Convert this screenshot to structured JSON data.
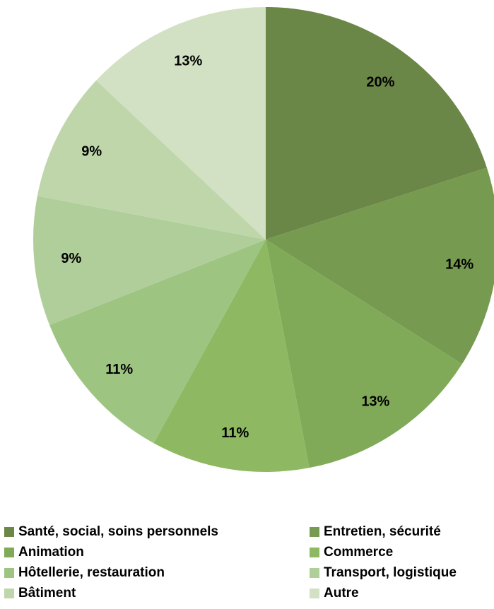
{
  "chart_data": {
    "type": "pie",
    "values": [
      20,
      14,
      13,
      11,
      11,
      9,
      9,
      13
    ],
    "labels": [
      "20%",
      "14%",
      "13%",
      "11%",
      "11%",
      "9%",
      "9%",
      "13%"
    ],
    "categories": [
      "Santé, social, soins personnels",
      "Entretien, sécurité",
      "Animation",
      "Commerce",
      "Hôtellerie, restauration",
      "Transport, logistique",
      "Bâtiment",
      "Autre"
    ],
    "colors": [
      "#6b8747",
      "#769a50",
      "#80aa58",
      "#8fb862",
      "#9ec482",
      "#b0ce9a",
      "#bfd6ab",
      "#d2e1c4"
    ],
    "legend_position": "bottom"
  }
}
